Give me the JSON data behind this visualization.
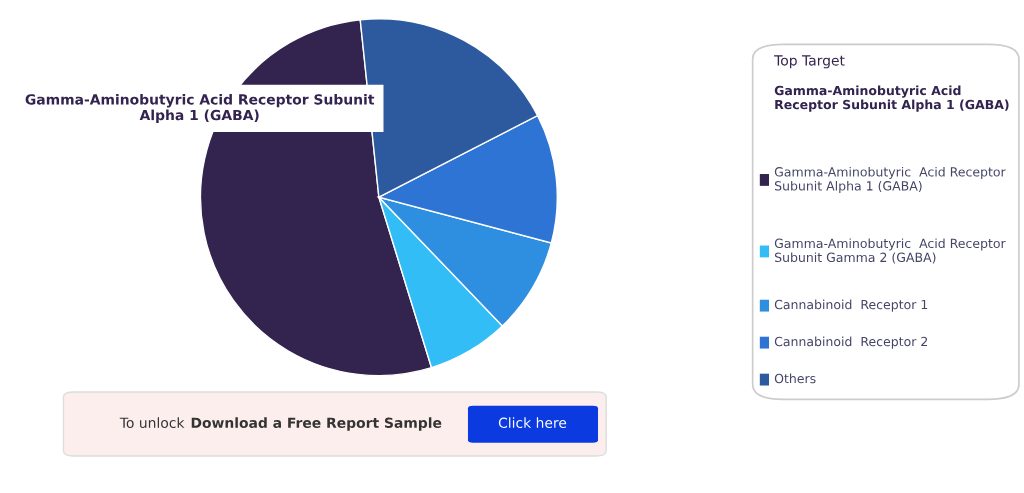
{
  "chart_data": {
    "type": "pie",
    "categories": [
      "Gamma-Aminobutyric  Acid Receptor Subunit Alpha 1 (GABA)",
      "Gamma-Aminobutyric  Acid Receptor Subunit Gamma 2 (GABA)",
      "Cannabinoid  Receptor 1",
      "Cannabinoid  Receptor 2",
      "Others"
    ],
    "values": [
      53.1,
      7.4,
      8.7,
      11.7,
      19.1
    ],
    "legend": "right",
    "colors": [
      "#33234f",
      "#33bdf6",
      "#2e8fe0",
      "#2d74d4",
      "#2d5a9e"
    ],
    "annotations": [
      "Gamma-Aminobutyric Acid Receptor Subunit Alpha 1 (GABA)",
      "Top Target",
      "Gamma-Aminobutyric Acid Receptor Subunit Alpha 1 (GABA)",
      "To unlock",
      "Download a Free Report Sample",
      "Click here"
    ]
  }
}
